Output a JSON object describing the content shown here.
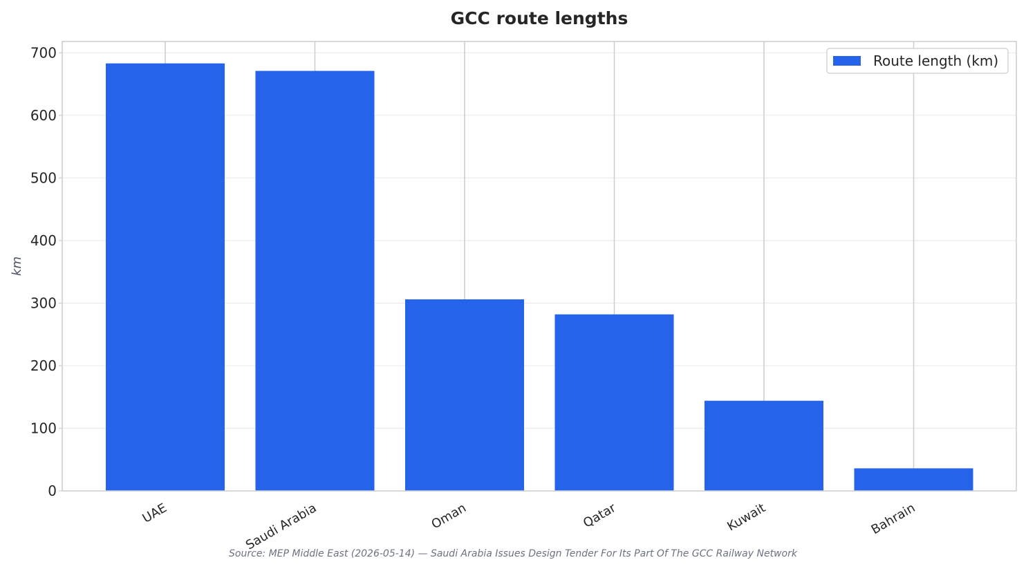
{
  "chart_data": {
    "type": "bar",
    "title": "GCC route lengths",
    "ylabel": "km",
    "xlabel": "",
    "categories": [
      "UAE",
      "Saudi Arabia",
      "Oman",
      "Qatar",
      "Kuwait",
      "Bahrain"
    ],
    "series": [
      {
        "name": "Route length (km)",
        "values": [
          683,
          671,
          306,
          282,
          144,
          36
        ],
        "color": "#2563eb"
      }
    ],
    "ylim": [
      0,
      718
    ],
    "yticks": [
      0,
      100,
      200,
      300,
      400,
      500,
      600,
      700
    ],
    "grid": true,
    "legend_position": "top-right",
    "source": "Source: MEP Middle East (2026-05-14) — Saudi Arabia Issues Design Tender For Its Part Of The GCC Railway Network"
  }
}
